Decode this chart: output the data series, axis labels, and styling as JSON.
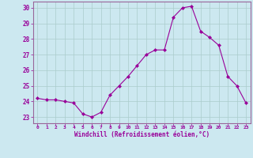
{
  "x": [
    0,
    1,
    2,
    3,
    4,
    5,
    6,
    7,
    8,
    9,
    10,
    11,
    12,
    13,
    14,
    15,
    16,
    17,
    18,
    19,
    20,
    21,
    22,
    23
  ],
  "y": [
    24.2,
    24.1,
    24.1,
    24.0,
    23.9,
    23.2,
    23.0,
    23.3,
    24.4,
    25.0,
    25.6,
    26.3,
    27.0,
    27.3,
    27.3,
    29.4,
    30.0,
    30.1,
    28.5,
    28.1,
    27.6,
    25.6,
    25.0,
    23.9
  ],
  "line_color": "#990099",
  "marker_color": "#990099",
  "bg_color": "#cce8f0",
  "grid_color": "#aacccc",
  "tick_color": "#990099",
  "label_color": "#990099",
  "xlabel": "Windchill (Refroidissement éolien,°C)",
  "xlim": [
    -0.5,
    23.5
  ],
  "ylim": [
    22.6,
    30.4
  ],
  "yticks": [
    23,
    24,
    25,
    26,
    27,
    28,
    29,
    30
  ],
  "xticks": [
    0,
    1,
    2,
    3,
    4,
    5,
    6,
    7,
    8,
    9,
    10,
    11,
    12,
    13,
    14,
    15,
    16,
    17,
    18,
    19,
    20,
    21,
    22,
    23
  ],
  "xtick_labels": [
    "0",
    "1",
    "2",
    "3",
    "4",
    "5",
    "6",
    "7",
    "8",
    "9",
    "10",
    "11",
    "12",
    "13",
    "14",
    "15",
    "16",
    "17",
    "18",
    "19",
    "20",
    "21",
    "22",
    "23"
  ]
}
